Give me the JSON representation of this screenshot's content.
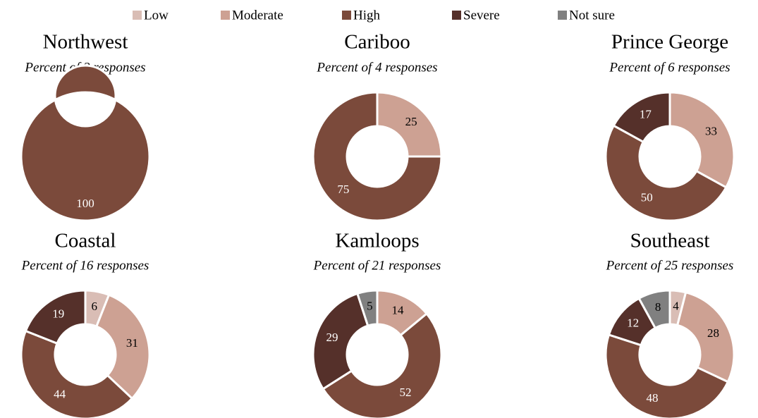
{
  "legend": {
    "categories": [
      "Low",
      "Moderate",
      "High",
      "Severe",
      "Not sure"
    ],
    "colors": [
      "#d9bdb5",
      "#cda193",
      "#7b4a3b",
      "#55302a",
      "#808080"
    ]
  },
  "chart_data": [
    {
      "type": "donut",
      "title": "Northwest",
      "subtitle": "Percent of 2 responses",
      "values": [
        null,
        null,
        100,
        null,
        null
      ]
    },
    {
      "type": "donut",
      "title": "Cariboo",
      "subtitle": "Percent of 4 responses",
      "values": [
        null,
        25,
        75,
        null,
        null
      ]
    },
    {
      "type": "donut",
      "title": "Prince George",
      "subtitle": "Percent of 6 responses",
      "values": [
        null,
        33,
        50,
        17,
        null
      ]
    },
    {
      "type": "donut",
      "title": "Coastal",
      "subtitle": "Percent of 16 responses",
      "values": [
        6,
        31,
        44,
        19,
        null
      ]
    },
    {
      "type": "donut",
      "title": "Kamloops",
      "subtitle": "Percent of 21 responses",
      "values": [
        null,
        14,
        52,
        29,
        5
      ]
    },
    {
      "type": "donut",
      "title": "Southeast",
      "subtitle": "Percent of 25 responses",
      "values": [
        4,
        28,
        48,
        12,
        8
      ]
    }
  ]
}
